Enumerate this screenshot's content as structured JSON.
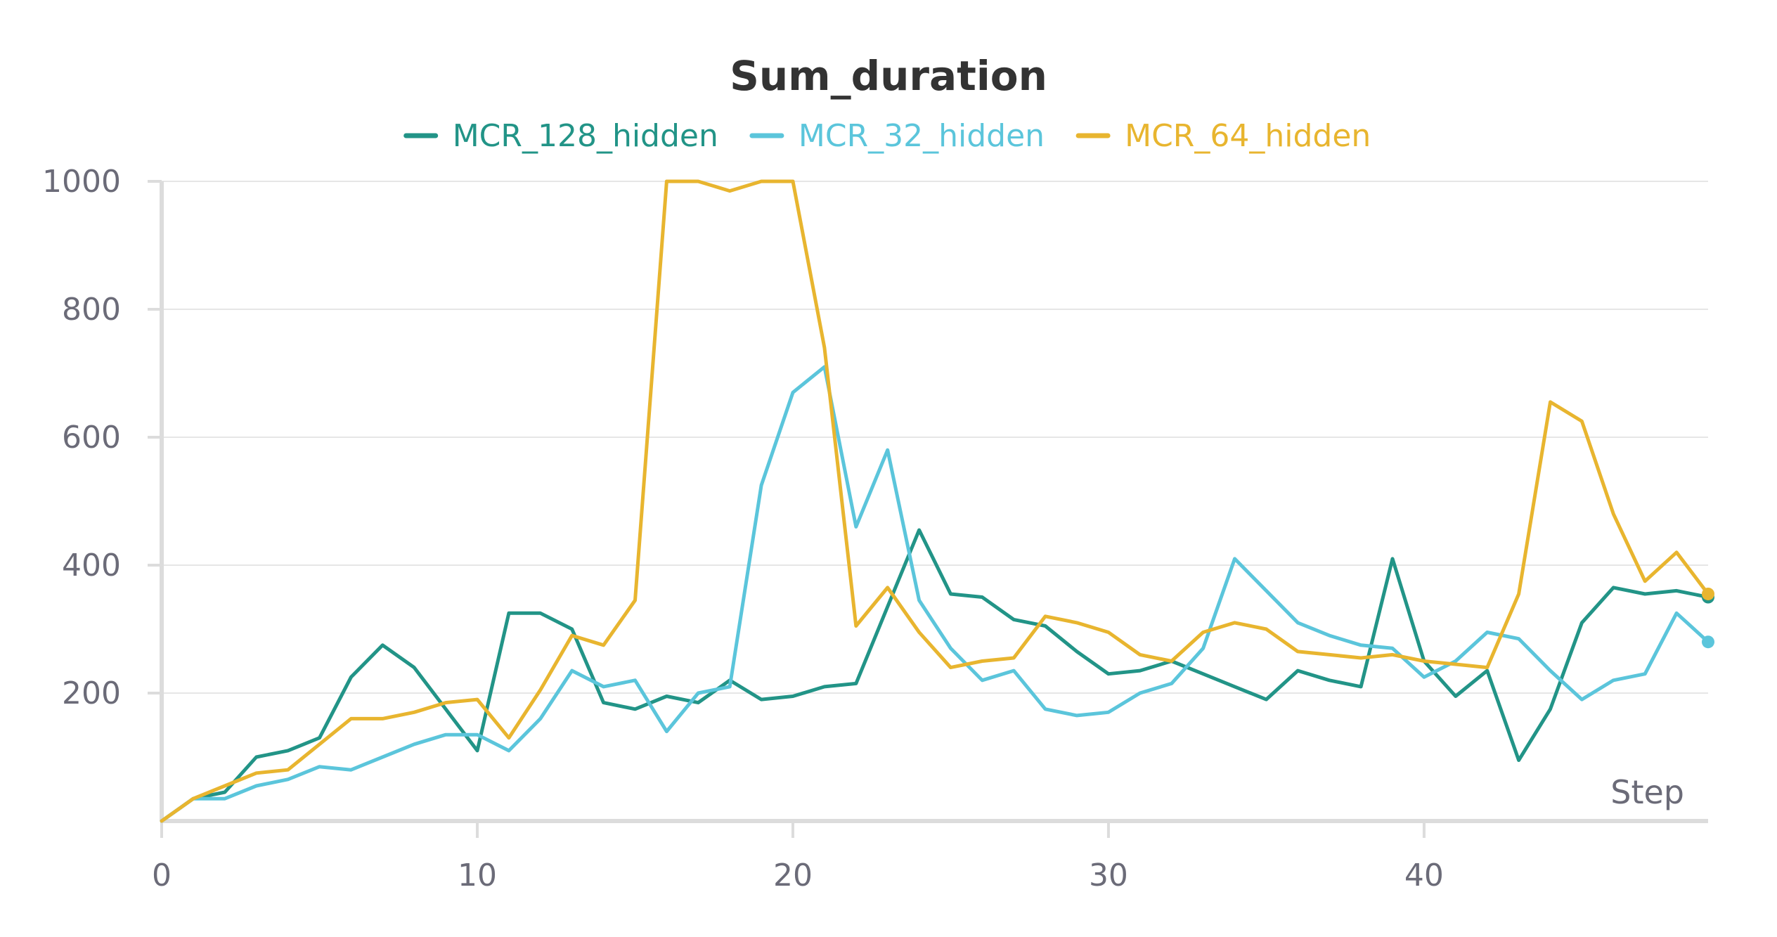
{
  "chart_data": {
    "type": "line",
    "title": "Sum_duration",
    "xlabel": "Step",
    "ylabel": "",
    "xlim": [
      0,
      49
    ],
    "ylim": [
      0,
      1000
    ],
    "xticks": [
      0,
      10,
      20,
      30,
      40
    ],
    "yticks": [
      200,
      400,
      600,
      800,
      1000
    ],
    "grid": true,
    "legend_position": "top-center",
    "x": [
      0,
      1,
      2,
      3,
      4,
      5,
      6,
      7,
      8,
      9,
      10,
      11,
      12,
      13,
      14,
      15,
      16,
      17,
      18,
      19,
      20,
      21,
      22,
      23,
      24,
      25,
      26,
      27,
      28,
      29,
      30,
      31,
      32,
      33,
      34,
      35,
      36,
      37,
      38,
      39,
      40,
      41,
      42,
      43,
      44,
      45,
      46,
      47,
      48,
      49
    ],
    "series": [
      {
        "name": "MCR_128_hidden",
        "color": "#229487",
        "values": [
          0,
          35,
          45,
          100,
          110,
          130,
          225,
          275,
          240,
          175,
          110,
          325,
          325,
          300,
          185,
          175,
          195,
          185,
          220,
          190,
          195,
          210,
          215,
          335,
          455,
          355,
          350,
          315,
          305,
          265,
          230,
          235,
          250,
          230,
          210,
          190,
          235,
          220,
          210,
          410,
          250,
          195,
          235,
          95,
          175,
          310,
          365,
          355,
          360,
          350
        ]
      },
      {
        "name": "MCR_32_hidden",
        "color": "#5bc5db",
        "values": [
          0,
          35,
          35,
          55,
          65,
          85,
          80,
          100,
          120,
          135,
          135,
          110,
          160,
          235,
          210,
          220,
          140,
          200,
          210,
          525,
          670,
          710,
          460,
          580,
          345,
          270,
          220,
          235,
          175,
          165,
          170,
          200,
          215,
          270,
          410,
          360,
          310,
          290,
          275,
          270,
          225,
          250,
          295,
          285,
          235,
          190,
          220,
          230,
          325,
          280
        ]
      },
      {
        "name": "MCR_64_hidden",
        "color": "#e8b52f",
        "values": [
          0,
          35,
          55,
          75,
          80,
          120,
          160,
          160,
          170,
          185,
          190,
          130,
          205,
          290,
          275,
          345,
          1000,
          1000,
          985,
          1000,
          1000,
          740,
          305,
          365,
          295,
          240,
          250,
          255,
          320,
          310,
          295,
          260,
          250,
          295,
          310,
          300,
          265,
          260,
          255,
          260,
          250,
          245,
          240,
          355,
          655,
          625,
          480,
          375,
          420,
          355
        ]
      }
    ]
  }
}
